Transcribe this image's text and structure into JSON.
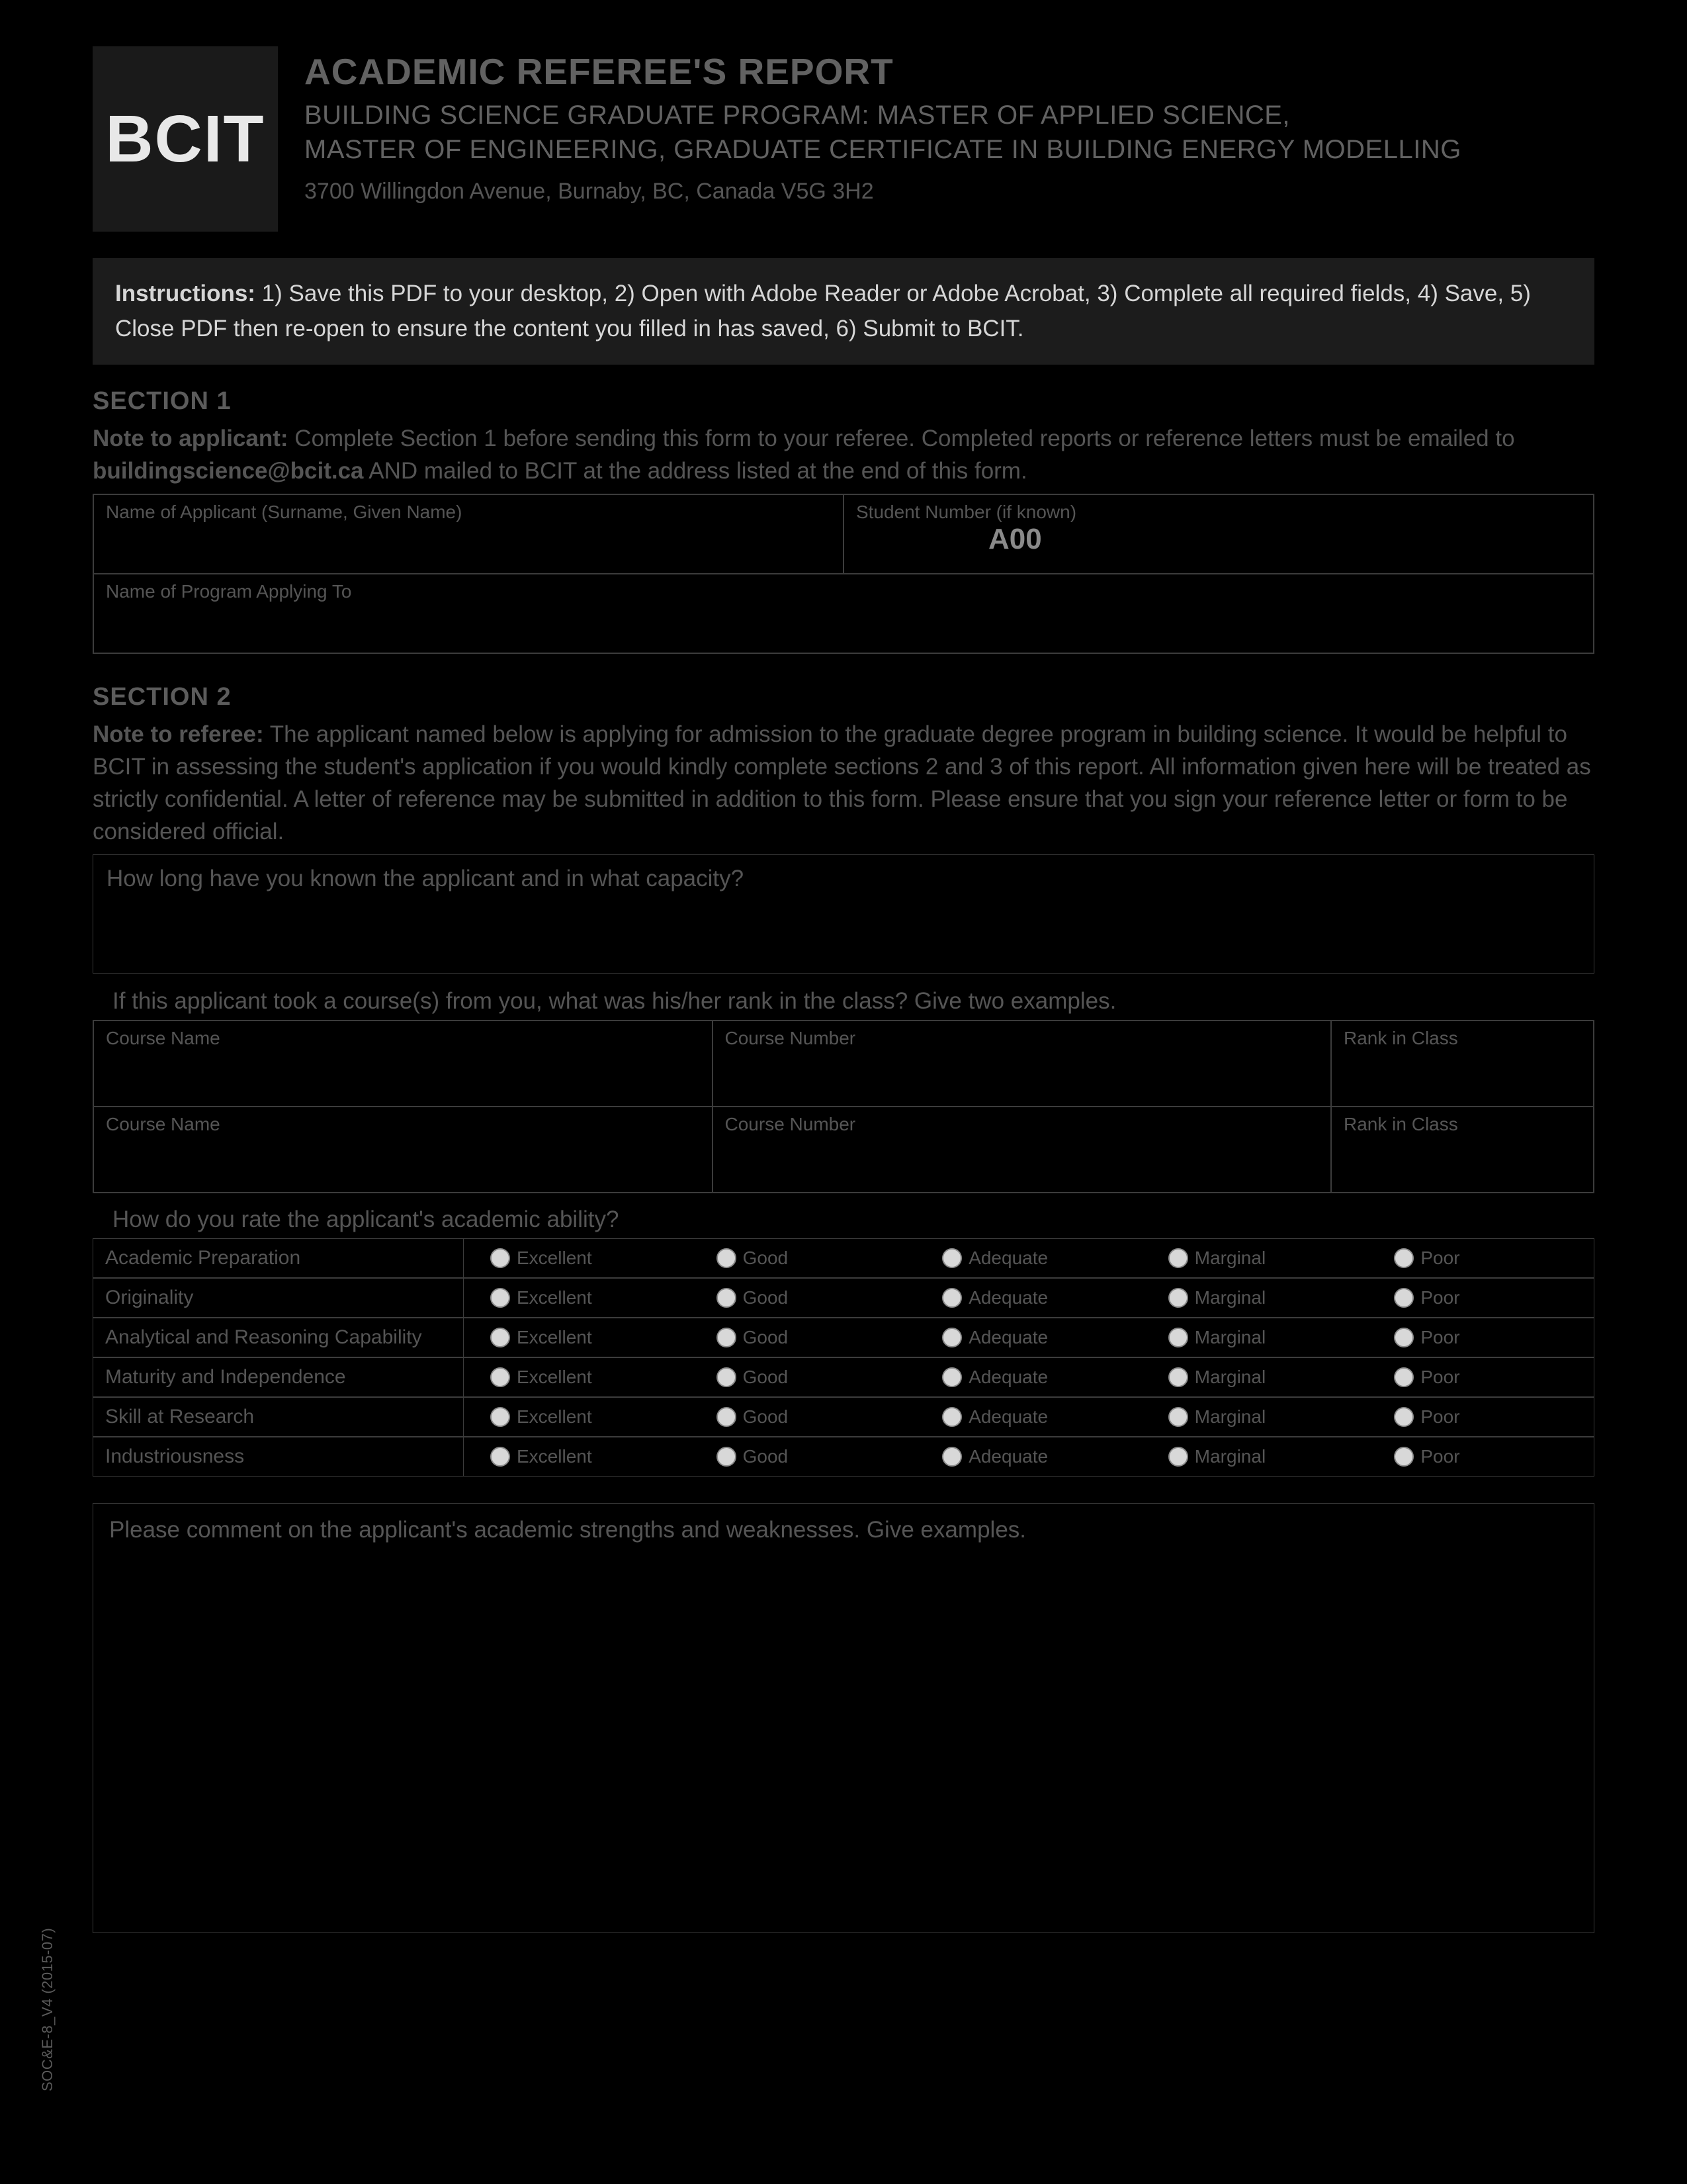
{
  "logo_text": "BCIT",
  "title_main": "ACADEMIC REFEREE'S REPORT",
  "title_sub_line1": "BUILDING SCIENCE GRADUATE PROGRAM: MASTER OF APPLIED SCIENCE,",
  "title_sub_line2": "MASTER OF ENGINEERING, GRADUATE CERTIFICATE IN BUILDING ENERGY MODELLING",
  "address": "3700 Willingdon Avenue, Burnaby, BC, Canada  V5G 3H2",
  "instructions": {
    "label": "Instructions:",
    "text": " 1) Save this PDF to your desktop, 2) Open with Adobe Reader or Adobe Acrobat, 3) Complete all required fields, 4) Save, 5) Close PDF then re-open to ensure the content you filled in has saved, 6) Submit to BCIT."
  },
  "section1": {
    "label": "SECTION 1",
    "note_bold": "Note to applicant:",
    "note_text_a": " Complete Section 1 before sending this form to your referee. Completed reports or reference letters must be emailed to ",
    "note_email": "buildingscience@bcit.ca",
    "note_text_b": " AND mailed to BCIT at the address listed at the end of this form.",
    "fields": {
      "applicant_name_label": "Name of Applicant (Surname, Given Name)",
      "student_number_label": "Student Number (if known)",
      "student_number_prefix": "A00",
      "program_label": "Name of Program Applying To"
    }
  },
  "section2": {
    "label": "SECTION 2",
    "note_bold": "Note to referee:",
    "note_text": " The applicant named below is applying for admission to the graduate degree program in building science. It would be helpful to BCIT in assessing the student's application if you would kindly complete sections 2 and 3 of this report. All information given here will be treated as strictly confidential. A letter of reference may be submitted in addition to this form. Please ensure that you sign your reference letter or form to be considered official.",
    "q_known": "How long have you known the applicant and in what capacity?",
    "q_courses": "If this applicant took a course(s) from you, what was his/her rank in the class? Give two examples.",
    "course_headers": {
      "name": "Course Name",
      "number": "Course Number",
      "rank": "Rank in Class"
    },
    "q_rating": "How do you rate the applicant's academic ability?",
    "rating_criteria": [
      "Academic Preparation",
      "Originality",
      "Analytical and Reasoning Capability",
      "Maturity and Independence",
      "Skill at Research",
      "Industriousness"
    ],
    "rating_options": [
      "Excellent",
      "Good",
      "Adequate",
      "Marginal",
      "Poor"
    ],
    "q_comments": "Please comment on the applicant's academic strengths and weaknesses. Give examples."
  },
  "footer_code": "SOC&E-8_V4 (2015-07)",
  "colors": {
    "page_bg": "#000000",
    "logo_bg": "#1a1a1a",
    "logo_fg": "#e8e8e8",
    "headline": "#626262",
    "body_text": "#555555",
    "instructions_bg": "#1c1c1c",
    "instructions_fg": "#d6d6d6",
    "border": "#3c3c3c",
    "radio_fill": "#d8d8d8"
  }
}
